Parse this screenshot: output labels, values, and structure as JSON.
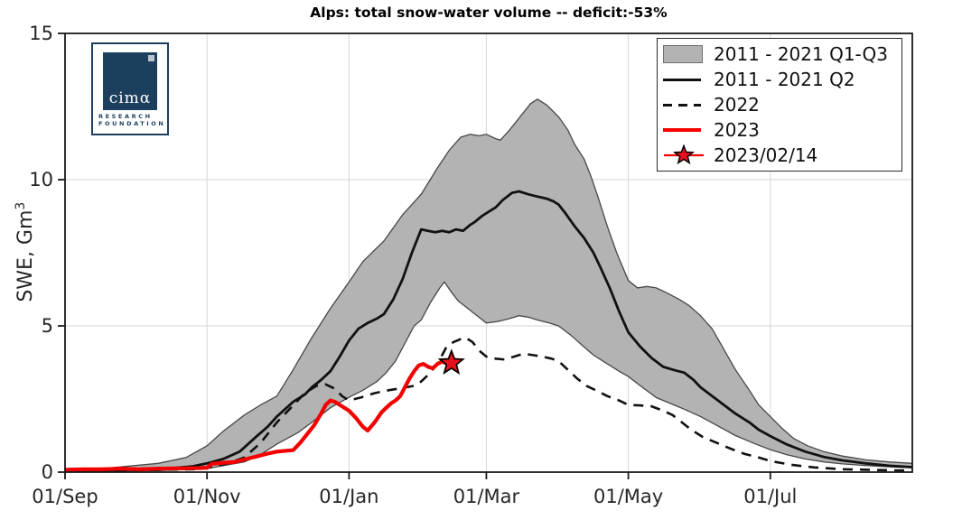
{
  "title": "Alps: total snow-water volume -- deficit:-53%",
  "logo": {
    "word": "cimα",
    "line1": "RESEARCH",
    "line2": "FOUNDATION"
  },
  "chart_data": {
    "type": "line",
    "title": "Alps: total snow-water volume -- deficit:-53%",
    "ylabel": "SWE, Gm",
    "ylabel_sup": "3",
    "xlabel": "",
    "ylim": [
      0,
      15
    ],
    "xlim_days": [
      0,
      364
    ],
    "grid": true,
    "grid_color": "#d6d6d6",
    "yticks": [
      0,
      5,
      10,
      15
    ],
    "xticks": {
      "days": [
        0,
        61,
        122,
        181,
        242,
        303
      ],
      "labels": [
        "01/Sep",
        "01/Nov",
        "01/Jan",
        "01/Mar",
        "01/May",
        "01/Jul"
      ]
    },
    "band": {
      "name": "2011 - 2021 Q1-Q3",
      "color": "#b3b3b3",
      "edge_color": "#474747",
      "upper": [
        [
          0,
          0.1
        ],
        [
          20,
          0.15
        ],
        [
          40,
          0.3
        ],
        [
          52,
          0.5
        ],
        [
          61,
          0.9
        ],
        [
          68,
          1.4
        ],
        [
          77,
          1.95
        ],
        [
          84,
          2.3
        ],
        [
          91,
          2.6
        ],
        [
          98,
          3.5
        ],
        [
          106,
          4.6
        ],
        [
          114,
          5.6
        ],
        [
          122,
          6.5
        ],
        [
          128,
          7.2
        ],
        [
          137,
          7.9
        ],
        [
          145,
          8.8
        ],
        [
          153,
          9.5
        ],
        [
          160,
          10.4
        ],
        [
          165,
          11.0
        ],
        [
          170,
          11.45
        ],
        [
          174,
          11.55
        ],
        [
          178,
          11.5
        ],
        [
          181,
          11.55
        ],
        [
          185,
          11.4
        ],
        [
          187,
          11.35
        ],
        [
          191,
          11.7
        ],
        [
          196,
          12.2
        ],
        [
          200,
          12.6
        ],
        [
          203,
          12.75
        ],
        [
          207,
          12.55
        ],
        [
          212,
          12.15
        ],
        [
          216,
          11.7
        ],
        [
          219,
          11.2
        ],
        [
          223,
          10.7
        ],
        [
          226,
          10.1
        ],
        [
          229,
          9.4
        ],
        [
          233,
          8.4
        ],
        [
          237,
          7.5
        ],
        [
          242,
          6.55
        ],
        [
          246,
          6.3
        ],
        [
          250,
          6.35
        ],
        [
          254,
          6.3
        ],
        [
          258,
          6.15
        ],
        [
          264,
          5.9
        ],
        [
          268,
          5.7
        ],
        [
          273,
          5.35
        ],
        [
          278,
          4.9
        ],
        [
          283,
          4.2
        ],
        [
          288,
          3.5
        ],
        [
          294,
          2.8
        ],
        [
          298,
          2.3
        ],
        [
          303,
          1.9
        ],
        [
          308,
          1.5
        ],
        [
          313,
          1.15
        ],
        [
          319,
          0.9
        ],
        [
          326,
          0.7
        ],
        [
          334,
          0.55
        ],
        [
          344,
          0.42
        ],
        [
          354,
          0.35
        ],
        [
          364,
          0.3
        ]
      ],
      "lower": [
        [
          0,
          0.02
        ],
        [
          20,
          0.03
        ],
        [
          40,
          0.05
        ],
        [
          61,
          0.12
        ],
        [
          70,
          0.25
        ],
        [
          77,
          0.35
        ],
        [
          84,
          0.6
        ],
        [
          91,
          0.96
        ],
        [
          100,
          1.35
        ],
        [
          106,
          1.7
        ],
        [
          114,
          2.2
        ],
        [
          122,
          2.56
        ],
        [
          128,
          2.8
        ],
        [
          134,
          3.1
        ],
        [
          138,
          3.4
        ],
        [
          142,
          3.8
        ],
        [
          146,
          4.4
        ],
        [
          150,
          5.0
        ],
        [
          153,
          5.2
        ],
        [
          157,
          5.8
        ],
        [
          161,
          6.3
        ],
        [
          163,
          6.5
        ],
        [
          166,
          6.15
        ],
        [
          169,
          5.85
        ],
        [
          173,
          5.6
        ],
        [
          177,
          5.35
        ],
        [
          181,
          5.1
        ],
        [
          186,
          5.15
        ],
        [
          191,
          5.25
        ],
        [
          195,
          5.35
        ],
        [
          199,
          5.3
        ],
        [
          203,
          5.2
        ],
        [
          208,
          5.1
        ],
        [
          212,
          5.0
        ],
        [
          217,
          4.7
        ],
        [
          222,
          4.35
        ],
        [
          227,
          4.0
        ],
        [
          233,
          3.7
        ],
        [
          238,
          3.45
        ],
        [
          242,
          3.27
        ],
        [
          248,
          2.9
        ],
        [
          254,
          2.55
        ],
        [
          260,
          2.35
        ],
        [
          266,
          2.15
        ],
        [
          273,
          1.9
        ],
        [
          280,
          1.6
        ],
        [
          288,
          1.25
        ],
        [
          296,
          0.98
        ],
        [
          303,
          0.77
        ],
        [
          310,
          0.6
        ],
        [
          318,
          0.45
        ],
        [
          326,
          0.35
        ],
        [
          334,
          0.28
        ],
        [
          345,
          0.22
        ],
        [
          355,
          0.18
        ],
        [
          364,
          0.15
        ]
      ]
    },
    "series": [
      {
        "name": "2011 - 2021 Q2",
        "color": "#111111",
        "width": 2.8,
        "dash": null,
        "points": [
          [
            0,
            0.05
          ],
          [
            20,
            0.07
          ],
          [
            35,
            0.1
          ],
          [
            48,
            0.15
          ],
          [
            55,
            0.2
          ],
          [
            61,
            0.3
          ],
          [
            68,
            0.45
          ],
          [
            75,
            0.7
          ],
          [
            82,
            1.2
          ],
          [
            87,
            1.55
          ],
          [
            91,
            1.9
          ],
          [
            98,
            2.4
          ],
          [
            103,
            2.65
          ],
          [
            106,
            2.9
          ],
          [
            110,
            3.15
          ],
          [
            114,
            3.45
          ],
          [
            118,
            3.95
          ],
          [
            122,
            4.5
          ],
          [
            126,
            4.9
          ],
          [
            130,
            5.1
          ],
          [
            134,
            5.25
          ],
          [
            137,
            5.4
          ],
          [
            141,
            5.9
          ],
          [
            145,
            6.6
          ],
          [
            149,
            7.5
          ],
          [
            153,
            8.3
          ],
          [
            156,
            8.25
          ],
          [
            159,
            8.2
          ],
          [
            162,
            8.25
          ],
          [
            165,
            8.2
          ],
          [
            168,
            8.3
          ],
          [
            171,
            8.25
          ],
          [
            174,
            8.45
          ],
          [
            176,
            8.55
          ],
          [
            179,
            8.75
          ],
          [
            182,
            8.9
          ],
          [
            185,
            9.05
          ],
          [
            188,
            9.3
          ],
          [
            192,
            9.55
          ],
          [
            195,
            9.6
          ],
          [
            199,
            9.5
          ],
          [
            203,
            9.42
          ],
          [
            207,
            9.35
          ],
          [
            210,
            9.25
          ],
          [
            212,
            9.15
          ],
          [
            215,
            8.85
          ],
          [
            219,
            8.4
          ],
          [
            223,
            8.0
          ],
          [
            227,
            7.5
          ],
          [
            230,
            7.0
          ],
          [
            234,
            6.3
          ],
          [
            238,
            5.5
          ],
          [
            242,
            4.78
          ],
          [
            247,
            4.3
          ],
          [
            252,
            3.9
          ],
          [
            257,
            3.6
          ],
          [
            262,
            3.48
          ],
          [
            266,
            3.4
          ],
          [
            270,
            3.15
          ],
          [
            273,
            2.9
          ],
          [
            278,
            2.6
          ],
          [
            283,
            2.3
          ],
          [
            288,
            2.0
          ],
          [
            294,
            1.7
          ],
          [
            298,
            1.45
          ],
          [
            303,
            1.23
          ],
          [
            310,
            0.95
          ],
          [
            318,
            0.7
          ],
          [
            326,
            0.52
          ],
          [
            334,
            0.4
          ],
          [
            344,
            0.3
          ],
          [
            354,
            0.22
          ],
          [
            364,
            0.17
          ]
        ]
      },
      {
        "name": "2022",
        "color": "#111111",
        "width": 2.6,
        "dash": "11,8",
        "points": [
          [
            0,
            0.03
          ],
          [
            20,
            0.05
          ],
          [
            40,
            0.08
          ],
          [
            55,
            0.1
          ],
          [
            61,
            0.15
          ],
          [
            70,
            0.3
          ],
          [
            77,
            0.5
          ],
          [
            84,
            1.0
          ],
          [
            91,
            1.7
          ],
          [
            97,
            2.2
          ],
          [
            103,
            2.7
          ],
          [
            108,
            2.95
          ],
          [
            112,
            3.0
          ],
          [
            116,
            2.85
          ],
          [
            119,
            2.6
          ],
          [
            122,
            2.45
          ],
          [
            127,
            2.55
          ],
          [
            133,
            2.7
          ],
          [
            139,
            2.8
          ],
          [
            145,
            2.88
          ],
          [
            150,
            2.95
          ],
          [
            153,
            3.1
          ],
          [
            157,
            3.4
          ],
          [
            161,
            3.85
          ],
          [
            164,
            4.3
          ],
          [
            167,
            4.45
          ],
          [
            170,
            4.55
          ],
          [
            172,
            4.6
          ],
          [
            175,
            4.45
          ],
          [
            178,
            4.15
          ],
          [
            181,
            3.95
          ],
          [
            185,
            3.88
          ],
          [
            189,
            3.85
          ],
          [
            193,
            3.95
          ],
          [
            197,
            4.05
          ],
          [
            201,
            4.0
          ],
          [
            205,
            3.95
          ],
          [
            209,
            3.88
          ],
          [
            212,
            3.8
          ],
          [
            216,
            3.5
          ],
          [
            220,
            3.2
          ],
          [
            224,
            2.95
          ],
          [
            228,
            2.8
          ],
          [
            233,
            2.6
          ],
          [
            238,
            2.45
          ],
          [
            242,
            2.3
          ],
          [
            247,
            2.28
          ],
          [
            252,
            2.25
          ],
          [
            257,
            2.1
          ],
          [
            261,
            1.95
          ],
          [
            265,
            1.7
          ],
          [
            269,
            1.45
          ],
          [
            274,
            1.2
          ],
          [
            280,
            1.0
          ],
          [
            286,
            0.8
          ],
          [
            292,
            0.62
          ],
          [
            298,
            0.5
          ],
          [
            303,
            0.38
          ],
          [
            312,
            0.25
          ],
          [
            322,
            0.16
          ],
          [
            334,
            0.1
          ],
          [
            350,
            0.07
          ],
          [
            364,
            0.05
          ]
        ]
      },
      {
        "name": "2023",
        "color": "#f40000",
        "width": 4.2,
        "dash": null,
        "points": [
          [
            0,
            0.08
          ],
          [
            8,
            0.1
          ],
          [
            16,
            0.1
          ],
          [
            24,
            0.12
          ],
          [
            32,
            0.1
          ],
          [
            40,
            0.12
          ],
          [
            50,
            0.13
          ],
          [
            58,
            0.14
          ],
          [
            61,
            0.15
          ],
          [
            63,
            0.28
          ],
          [
            68,
            0.32
          ],
          [
            73,
            0.35
          ],
          [
            78,
            0.45
          ],
          [
            83,
            0.55
          ],
          [
            88,
            0.65
          ],
          [
            91,
            0.7
          ],
          [
            95,
            0.73
          ],
          [
            98,
            0.75
          ],
          [
            101,
            1.0
          ],
          [
            104,
            1.3
          ],
          [
            107,
            1.6
          ],
          [
            110,
            2.0
          ],
          [
            112,
            2.3
          ],
          [
            114,
            2.45
          ],
          [
            116,
            2.4
          ],
          [
            118,
            2.3
          ],
          [
            120,
            2.2
          ],
          [
            122,
            2.1
          ],
          [
            125,
            1.85
          ],
          [
            128,
            1.55
          ],
          [
            130,
            1.42
          ],
          [
            133,
            1.7
          ],
          [
            136,
            2.05
          ],
          [
            138,
            2.2
          ],
          [
            140,
            2.35
          ],
          [
            142,
            2.45
          ],
          [
            144,
            2.6
          ],
          [
            146,
            2.9
          ],
          [
            148,
            3.2
          ],
          [
            150,
            3.45
          ],
          [
            152,
            3.65
          ],
          [
            154,
            3.7
          ],
          [
            156,
            3.6
          ],
          [
            158,
            3.55
          ],
          [
            160,
            3.7
          ],
          [
            162,
            3.78
          ],
          [
            164,
            3.72
          ],
          [
            166,
            3.73
          ],
          [
            168,
            3.76
          ]
        ]
      }
    ],
    "marker": {
      "name": "2023/02/14",
      "day": 166,
      "value": 3.73,
      "color": "#e8101c",
      "edge_color": "#000000"
    },
    "legend": {
      "position": "top-right",
      "entries": [
        {
          "label": "2011 - 2021 Q1-Q3",
          "symbol": "band"
        },
        {
          "label": "2011 - 2021 Q2",
          "symbol": "solid-line"
        },
        {
          "label": "2022",
          "symbol": "dashed-line"
        },
        {
          "label": "2023",
          "symbol": "red-line"
        },
        {
          "label": "2023/02/14",
          "symbol": "red-star"
        }
      ]
    }
  }
}
